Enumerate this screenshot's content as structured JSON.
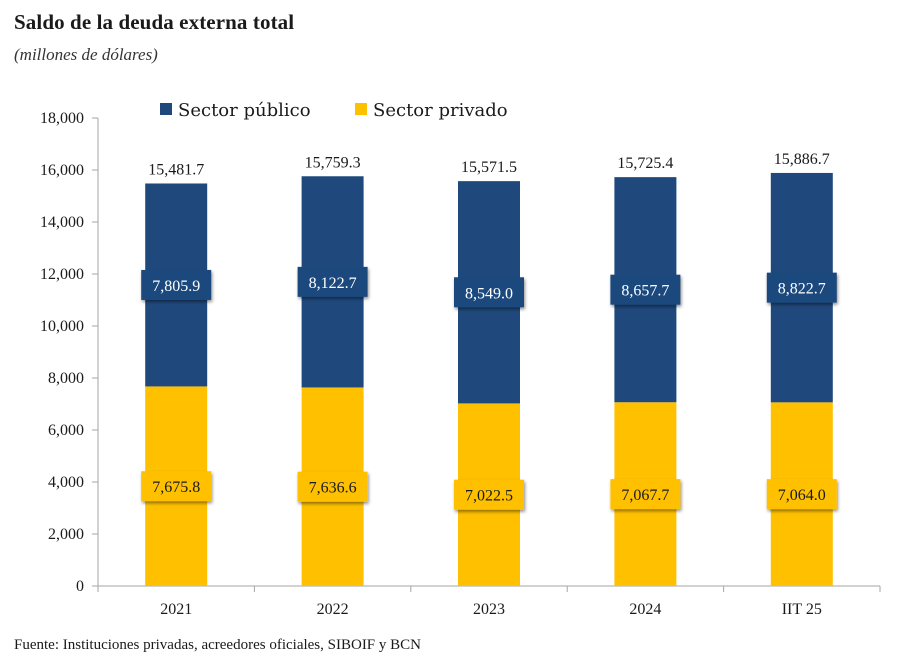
{
  "header": {
    "title": "Saldo de la deuda externa total",
    "subtitle": "(millones de dólares)"
  },
  "footer": {
    "source": "Fuente: Instituciones privadas, acreedores oficiales, SIBOIF y BCN"
  },
  "colors": {
    "publico": "#1F497D",
    "privado": "#FFC000"
  },
  "chart_data": {
    "type": "bar",
    "stacked": true,
    "title": "Saldo de la deuda externa total",
    "subtitle": "(millones de dólares)",
    "xlabel": "",
    "ylabel": "",
    "categories": [
      "2021",
      "2022",
      "2023",
      "2024",
      "IIT 25"
    ],
    "series": [
      {
        "name": "Sector privado",
        "color": "#FFC000",
        "values": [
          7675.8,
          7636.6,
          7022.5,
          7067.7,
          7064.0
        ],
        "labels": [
          "7,675.8",
          "7,636.6",
          "7,022.5",
          "7,067.7",
          "7,064.0"
        ]
      },
      {
        "name": "Sector público",
        "color": "#1F497D",
        "values": [
          7805.9,
          8122.7,
          8549.0,
          8657.7,
          8822.7
        ],
        "labels": [
          "7,805.9",
          "8,122.7",
          "8,549.0",
          "8,657.7",
          "8,822.7"
        ]
      }
    ],
    "totals": [
      15481.7,
      15759.3,
      15571.5,
      15725.4,
      15886.7
    ],
    "total_labels": [
      "15,481.7",
      "15,759.3",
      "15,571.5",
      "15,725.4",
      "15,886.7"
    ],
    "ylim": [
      0,
      18000
    ],
    "yticks": [
      0,
      2000,
      4000,
      6000,
      8000,
      10000,
      12000,
      14000,
      16000,
      18000
    ],
    "ytick_labels": [
      "0",
      "2,000",
      "4,000",
      "6,000",
      "8,000",
      "10,000",
      "12,000",
      "14,000",
      "16,000",
      "18,000"
    ],
    "legend": {
      "position": "top-left",
      "entries": [
        {
          "label": "Sector público",
          "color": "#1F497D"
        },
        {
          "label": "Sector privado",
          "color": "#FFC000"
        }
      ]
    },
    "grid": false
  }
}
